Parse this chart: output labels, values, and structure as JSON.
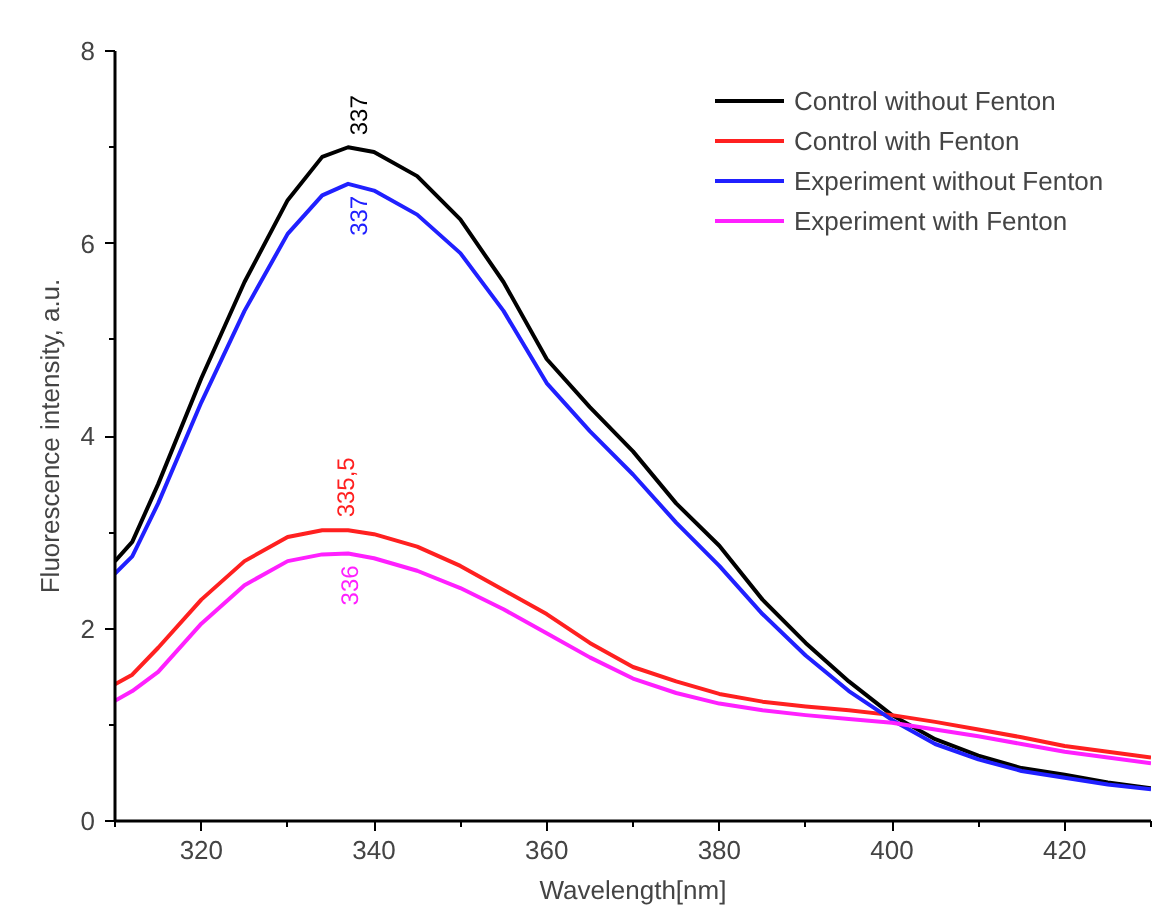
{
  "chart_data": {
    "type": "line",
    "xlabel": "Wavelength[nm]",
    "ylabel": "Fluorescence intensity, a.u.",
    "x": [
      310,
      312,
      315,
      320,
      325,
      330,
      334,
      337,
      340,
      345,
      350,
      355,
      360,
      365,
      370,
      375,
      380,
      385,
      390,
      395,
      400,
      405,
      410,
      415,
      420,
      425,
      430
    ],
    "series": [
      {
        "name": "Control without Fenton",
        "color": "#000000",
        "values": [
          2.7,
          2.9,
          3.5,
          4.6,
          5.6,
          6.45,
          6.9,
          7.0,
          6.95,
          6.7,
          6.25,
          5.6,
          4.8,
          4.3,
          3.84,
          3.3,
          2.86,
          2.3,
          1.85,
          1.45,
          1.1,
          0.85,
          0.68,
          0.55,
          0.48,
          0.4,
          0.34
        ]
      },
      {
        "name": "Control with Fenton",
        "color": "#ff2020",
        "values": [
          1.42,
          1.52,
          1.8,
          2.3,
          2.7,
          2.95,
          3.02,
          3.02,
          2.98,
          2.85,
          2.65,
          2.4,
          2.15,
          1.85,
          1.6,
          1.45,
          1.32,
          1.24,
          1.19,
          1.15,
          1.1,
          1.03,
          0.95,
          0.87,
          0.78,
          0.72,
          0.66
        ]
      },
      {
        "name": "Experiment without Fenton",
        "color": "#2020ff",
        "values": [
          2.57,
          2.75,
          3.3,
          4.35,
          5.3,
          6.1,
          6.5,
          6.62,
          6.55,
          6.3,
          5.9,
          5.3,
          4.55,
          4.05,
          3.6,
          3.1,
          2.65,
          2.15,
          1.72,
          1.35,
          1.05,
          0.8,
          0.64,
          0.52,
          0.45,
          0.38,
          0.33
        ]
      },
      {
        "name": "Experiment with Fenton",
        "color": "#ff20ff",
        "values": [
          1.25,
          1.35,
          1.55,
          2.05,
          2.45,
          2.7,
          2.77,
          2.78,
          2.73,
          2.6,
          2.42,
          2.2,
          1.95,
          1.7,
          1.48,
          1.33,
          1.22,
          1.15,
          1.1,
          1.06,
          1.02,
          0.95,
          0.88,
          0.8,
          0.72,
          0.66,
          0.6
        ]
      }
    ],
    "annotations": [
      {
        "text": "337",
        "x": 337,
        "y": 7.0
      },
      {
        "text": "335,5",
        "x": 335.5,
        "y": 3.03
      },
      {
        "text": "337",
        "x": 337,
        "y": 6.62
      },
      {
        "text": "336",
        "x": 336,
        "y": 2.78
      }
    ],
    "xlim": [
      310,
      430
    ],
    "xticks": [
      320,
      340,
      360,
      380,
      400,
      420
    ],
    "ylim": [
      0,
      8
    ],
    "yticks": [
      0,
      2,
      4,
      6,
      8
    ],
    "grid": false,
    "legend": "right",
    "marker": "none",
    "line_style": "solid"
  }
}
